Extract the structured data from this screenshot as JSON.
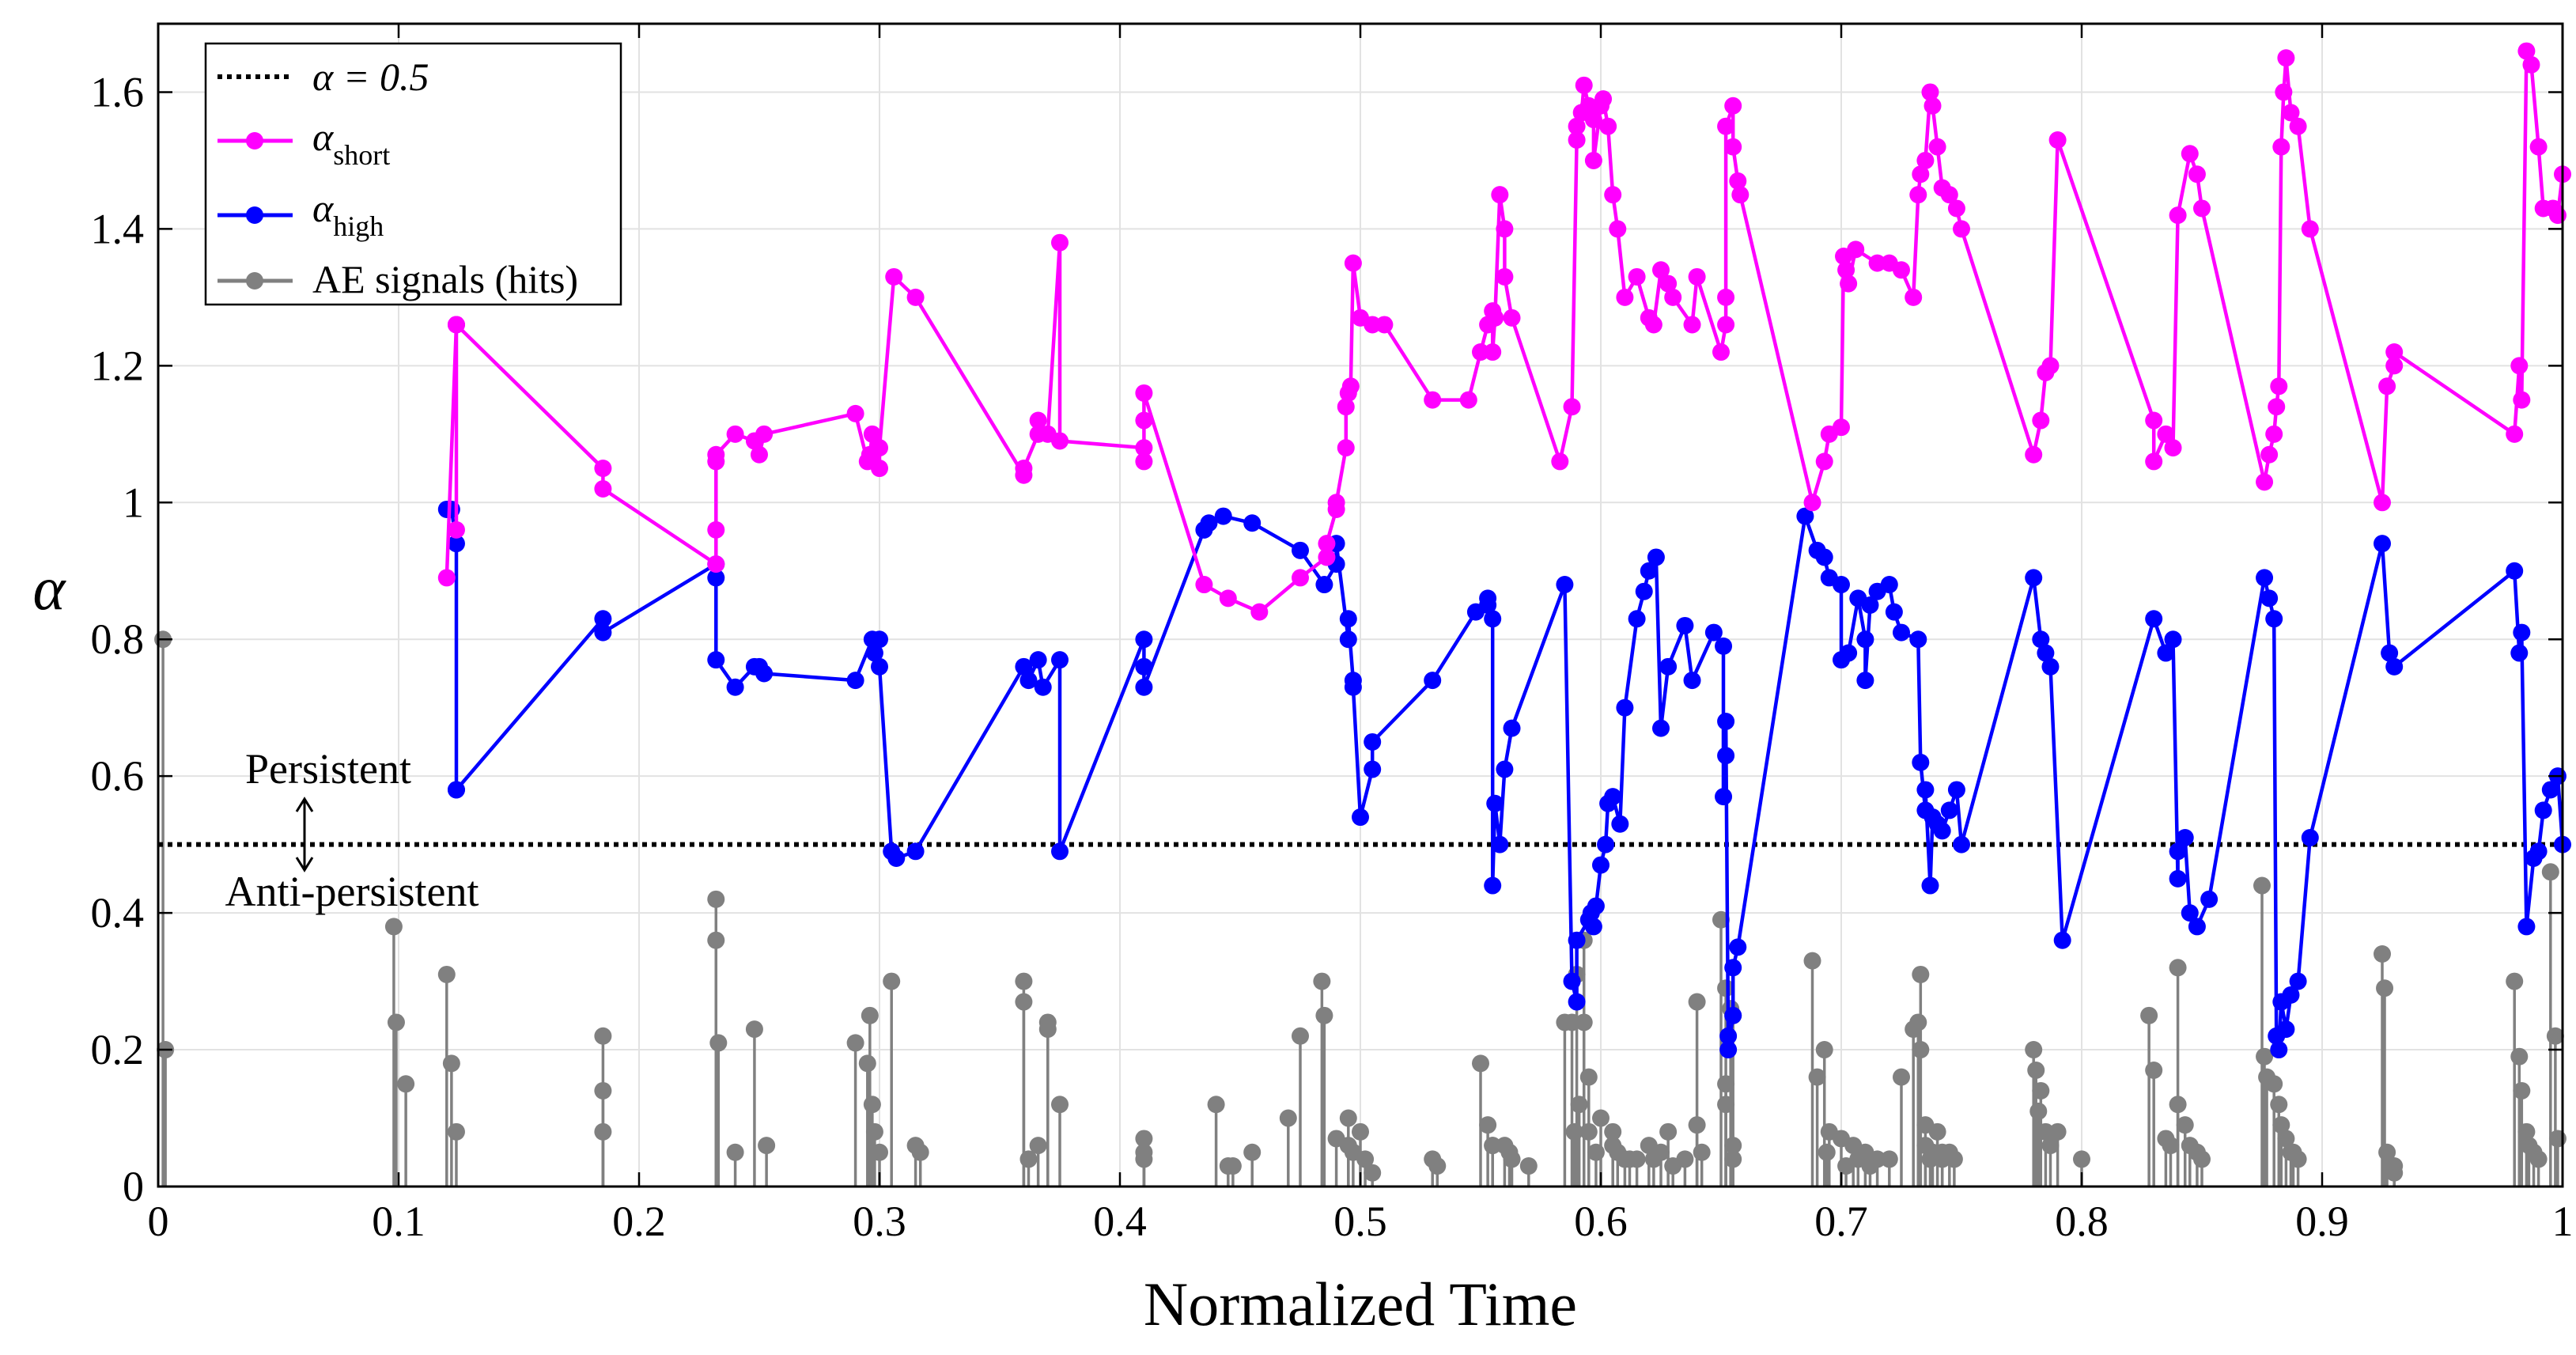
{
  "chart_data": {
    "type": "line",
    "title": "",
    "xlabel": "Normalized Time",
    "ylabel": "α",
    "xlim": [
      0,
      1
    ],
    "ylim": [
      0,
      1.7
    ],
    "grid": true,
    "xticks": [
      0,
      0.1,
      0.2,
      0.3,
      0.4,
      0.5,
      0.6,
      0.7,
      0.8,
      0.9,
      1
    ],
    "xtick_labels": [
      "0",
      "0.1",
      "0.2",
      "0.3",
      "0.4",
      "0.5",
      "0.6",
      "0.7",
      "0.8",
      "0.9",
      "1"
    ],
    "yticks": [
      0,
      0.2,
      0.4,
      0.6,
      0.8,
      1,
      1.2,
      1.4,
      1.6
    ],
    "ytick_labels": [
      "0",
      "0.2",
      "0.4",
      "0.6",
      "0.8",
      "1",
      "1.2",
      "1.4",
      "1.6"
    ],
    "legend": {
      "position": "top-left",
      "entries": [
        {
          "base": "α = 0.5",
          "sub": ""
        },
        {
          "base": "α",
          "sub": "short"
        },
        {
          "base": "α",
          "sub": "high"
        },
        {
          "base": "AE signals (hits)",
          "sub": ""
        }
      ]
    },
    "reference_line": {
      "name": "α = 0.5",
      "y": 0.5,
      "color": "#000000",
      "style": "dotted"
    },
    "annotations": {
      "above": "Persistent",
      "below": "Anti-persistent"
    },
    "colors": {
      "short": "#ff00ff",
      "high": "#0000ff",
      "ae": "#808080"
    },
    "series": [
      {
        "name": "α_short",
        "x": [
          0.12,
          0.124,
          0.124,
          0.124,
          0.124,
          0.185,
          0.185,
          0.232,
          0.232,
          0.232,
          0.232,
          0.24,
          0.248,
          0.25,
          0.252,
          0.29,
          0.295,
          0.296,
          0.297,
          0.3,
          0.3,
          0.306,
          0.315,
          0.36,
          0.36,
          0.366,
          0.366,
          0.37,
          0.375,
          0.375,
          0.41,
          0.41,
          0.41,
          0.41,
          0.435,
          0.445,
          0.458,
          0.475,
          0.486,
          0.486,
          0.49,
          0.49,
          0.494,
          0.494,
          0.495,
          0.496,
          0.497,
          0.5,
          0.505,
          0.51,
          0.53,
          0.545,
          0.55,
          0.553,
          0.555,
          0.555,
          0.556,
          0.558,
          0.56,
          0.56,
          0.563,
          0.583,
          0.588,
          0.59,
          0.59,
          0.592,
          0.593,
          0.595,
          0.597,
          0.597,
          0.6,
          0.601,
          0.603,
          0.605,
          0.607,
          0.61,
          0.615,
          0.62,
          0.622,
          0.625,
          0.628,
          0.63,
          0.638,
          0.64,
          0.65,
          0.652,
          0.652,
          0.652,
          0.655,
          0.655,
          0.657,
          0.658,
          0.688,
          0.693,
          0.695,
          0.7,
          0.701,
          0.702,
          0.703,
          0.706,
          0.715,
          0.72,
          0.725,
          0.73,
          0.732,
          0.733,
          0.735,
          0.737,
          0.738,
          0.74,
          0.742,
          0.745,
          0.748,
          0.75,
          0.78,
          0.783,
          0.785,
          0.787,
          0.79,
          0.83,
          0.83,
          0.835,
          0.838,
          0.84,
          0.845,
          0.848,
          0.85,
          0.876,
          0.878,
          0.88,
          0.881,
          0.882,
          0.883,
          0.884,
          0.885,
          0.887,
          0.89,
          0.895,
          0.925,
          0.927,
          0.93,
          0.93,
          0.98,
          0.982,
          0.983,
          0.985,
          0.987,
          0.99,
          0.992,
          0.996,
          0.998,
          1
        ],
        "y": [
          0.89,
          1.26,
          0.96,
          1.26,
          1.26,
          1.05,
          1.02,
          0.91,
          0.96,
          1.06,
          1.07,
          1.1,
          1.09,
          1.07,
          1.1,
          1.13,
          1.06,
          1.07,
          1.1,
          1.05,
          1.08,
          1.33,
          1.3,
          1.04,
          1.05,
          1.1,
          1.12,
          1.1,
          1.38,
          1.09,
          1.08,
          1.06,
          1.12,
          1.16,
          0.88,
          0.86,
          0.84,
          0.89,
          0.92,
          0.94,
          0.99,
          1.0,
          1.08,
          1.14,
          1.16,
          1.17,
          1.35,
          1.27,
          1.26,
          1.26,
          1.15,
          1.15,
          1.22,
          1.26,
          1.28,
          1.22,
          1.27,
          1.45,
          1.4,
          1.33,
          1.27,
          1.06,
          1.14,
          1.53,
          1.55,
          1.57,
          1.61,
          1.58,
          1.56,
          1.5,
          1.58,
          1.59,
          1.55,
          1.45,
          1.4,
          1.3,
          1.33,
          1.27,
          1.26,
          1.34,
          1.32,
          1.3,
          1.26,
          1.33,
          1.22,
          1.26,
          1.3,
          1.55,
          1.58,
          1.52,
          1.47,
          1.45,
          1.0,
          1.06,
          1.1,
          1.11,
          1.36,
          1.34,
          1.32,
          1.37,
          1.35,
          1.35,
          1.34,
          1.3,
          1.45,
          1.48,
          1.5,
          1.6,
          1.58,
          1.52,
          1.46,
          1.45,
          1.43,
          1.4,
          1.07,
          1.12,
          1.19,
          1.2,
          1.53,
          1.12,
          1.06,
          1.1,
          1.08,
          1.42,
          1.51,
          1.48,
          1.43,
          1.03,
          1.07,
          1.1,
          1.14,
          1.17,
          1.52,
          1.6,
          1.65,
          1.57,
          1.55,
          1.4,
          1.0,
          1.17,
          1.2,
          1.22,
          1.1,
          1.2,
          1.15,
          1.66,
          1.64,
          1.52,
          1.43,
          1.43,
          1.42,
          1.48
        ]
      },
      {
        "name": "α_high",
        "x": [
          0.12,
          0.122,
          0.124,
          0.124,
          0.124,
          0.185,
          0.185,
          0.232,
          0.232,
          0.232,
          0.24,
          0.248,
          0.25,
          0.252,
          0.29,
          0.297,
          0.298,
          0.3,
          0.3,
          0.305,
          0.307,
          0.315,
          0.36,
          0.362,
          0.366,
          0.368,
          0.375,
          0.375,
          0.41,
          0.41,
          0.41,
          0.435,
          0.437,
          0.443,
          0.455,
          0.475,
          0.485,
          0.49,
          0.49,
          0.495,
          0.495,
          0.497,
          0.497,
          0.5,
          0.505,
          0.505,
          0.53,
          0.548,
          0.553,
          0.553,
          0.555,
          0.555,
          0.556,
          0.558,
          0.56,
          0.563,
          0.585,
          0.588,
          0.59,
          0.59,
          0.595,
          0.596,
          0.597,
          0.598,
          0.6,
          0.602,
          0.603,
          0.605,
          0.608,
          0.61,
          0.615,
          0.618,
          0.62,
          0.623,
          0.625,
          0.628,
          0.635,
          0.638,
          0.647,
          0.651,
          0.651,
          0.652,
          0.652,
          0.653,
          0.653,
          0.655,
          0.655,
          0.657,
          0.685,
          0.69,
          0.693,
          0.695,
          0.7,
          0.7,
          0.703,
          0.707,
          0.71,
          0.71,
          0.712,
          0.715,
          0.72,
          0.722,
          0.725,
          0.732,
          0.733,
          0.735,
          0.735,
          0.737,
          0.738,
          0.74,
          0.742,
          0.745,
          0.748,
          0.75,
          0.78,
          0.783,
          0.785,
          0.787,
          0.792,
          0.83,
          0.835,
          0.838,
          0.84,
          0.84,
          0.843,
          0.845,
          0.848,
          0.853,
          0.876,
          0.878,
          0.88,
          0.881,
          0.882,
          0.883,
          0.885,
          0.887,
          0.89,
          0.895,
          0.925,
          0.928,
          0.93,
          0.98,
          0.982,
          0.983,
          0.985,
          0.988,
          0.99,
          0.992,
          0.995,
          0.998,
          1
        ],
        "y": [
          0.99,
          0.99,
          0.94,
          0.58,
          0.58,
          0.83,
          0.81,
          0.91,
          0.89,
          0.77,
          0.73,
          0.76,
          0.76,
          0.75,
          0.74,
          0.8,
          0.78,
          0.8,
          0.76,
          0.49,
          0.48,
          0.49,
          0.76,
          0.74,
          0.77,
          0.73,
          0.77,
          0.49,
          0.8,
          0.76,
          0.73,
          0.96,
          0.97,
          0.98,
          0.97,
          0.93,
          0.88,
          0.91,
          0.94,
          0.8,
          0.83,
          0.74,
          0.73,
          0.54,
          0.61,
          0.65,
          0.74,
          0.84,
          0.85,
          0.86,
          0.83,
          0.44,
          0.56,
          0.5,
          0.61,
          0.67,
          0.88,
          0.3,
          0.27,
          0.36,
          0.39,
          0.4,
          0.38,
          0.41,
          0.47,
          0.5,
          0.56,
          0.57,
          0.53,
          0.7,
          0.83,
          0.87,
          0.9,
          0.92,
          0.67,
          0.76,
          0.82,
          0.74,
          0.81,
          0.79,
          0.57,
          0.63,
          0.68,
          0.22,
          0.2,
          0.25,
          0.32,
          0.35,
          0.98,
          0.93,
          0.92,
          0.89,
          0.88,
          0.77,
          0.78,
          0.86,
          0.8,
          0.74,
          0.85,
          0.87,
          0.88,
          0.84,
          0.81,
          0.8,
          0.62,
          0.55,
          0.58,
          0.44,
          0.54,
          0.53,
          0.52,
          0.55,
          0.58,
          0.5,
          0.89,
          0.8,
          0.78,
          0.76,
          0.36,
          0.83,
          0.78,
          0.8,
          0.45,
          0.49,
          0.51,
          0.4,
          0.38,
          0.42,
          0.89,
          0.86,
          0.83,
          0.22,
          0.2,
          0.27,
          0.23,
          0.28,
          0.3,
          0.51,
          0.94,
          0.78,
          0.76,
          0.9,
          0.78,
          0.81,
          0.38,
          0.48,
          0.49,
          0.55,
          0.58,
          0.6,
          0.5
        ]
      },
      {
        "name": "AE signals (hits)",
        "type": "stem",
        "x": [
          0.002,
          0.003,
          0.098,
          0.099,
          0.103,
          0.12,
          0.122,
          0.124,
          0.185,
          0.185,
          0.185,
          0.232,
          0.232,
          0.233,
          0.24,
          0.248,
          0.253,
          0.29,
          0.295,
          0.296,
          0.297,
          0.298,
          0.3,
          0.305,
          0.315,
          0.317,
          0.36,
          0.36,
          0.362,
          0.366,
          0.37,
          0.37,
          0.375,
          0.41,
          0.41,
          0.41,
          0.44,
          0.445,
          0.447,
          0.455,
          0.47,
          0.475,
          0.484,
          0.485,
          0.49,
          0.495,
          0.495,
          0.497,
          0.5,
          0.502,
          0.505,
          0.53,
          0.532,
          0.55,
          0.553,
          0.555,
          0.555,
          0.56,
          0.562,
          0.563,
          0.57,
          0.585,
          0.588,
          0.589,
          0.59,
          0.591,
          0.593,
          0.593,
          0.595,
          0.595,
          0.598,
          0.6,
          0.605,
          0.605,
          0.607,
          0.61,
          0.612,
          0.615,
          0.62,
          0.622,
          0.625,
          0.628,
          0.63,
          0.635,
          0.64,
          0.64,
          0.642,
          0.65,
          0.652,
          0.652,
          0.652,
          0.654,
          0.655,
          0.655,
          0.655,
          0.688,
          0.69,
          0.693,
          0.694,
          0.695,
          0.7,
          0.702,
          0.705,
          0.707,
          0.71,
          0.712,
          0.715,
          0.72,
          0.725,
          0.73,
          0.732,
          0.733,
          0.733,
          0.735,
          0.735,
          0.737,
          0.738,
          0.74,
          0.742,
          0.742,
          0.745,
          0.747,
          0.78,
          0.781,
          0.782,
          0.783,
          0.785,
          0.787,
          0.79,
          0.8,
          0.828,
          0.83,
          0.835,
          0.837,
          0.84,
          0.84,
          0.843,
          0.845,
          0.848,
          0.85,
          0.875,
          0.876,
          0.877,
          0.88,
          0.882,
          0.883,
          0.885,
          0.887,
          0.888,
          0.89,
          0.925,
          0.926,
          0.927,
          0.93,
          0.93,
          0.98,
          0.982,
          0.983,
          0.985,
          0.986,
          0.988,
          0.99,
          0.995,
          0.997,
          0.998
        ],
        "y": [
          0.8,
          0.2,
          0.38,
          0.24,
          0.15,
          0.31,
          0.18,
          0.08,
          0.22,
          0.14,
          0.08,
          0.42,
          0.36,
          0.21,
          0.05,
          0.23,
          0.06,
          0.21,
          0.18,
          0.25,
          0.12,
          0.08,
          0.05,
          0.3,
          0.06,
          0.05,
          0.3,
          0.27,
          0.04,
          0.06,
          0.24,
          0.23,
          0.12,
          0.07,
          0.05,
          0.04,
          0.12,
          0.03,
          0.03,
          0.05,
          0.1,
          0.22,
          0.3,
          0.25,
          0.07,
          0.1,
          0.06,
          0.05,
          0.08,
          0.04,
          0.02,
          0.04,
          0.03,
          0.18,
          0.09,
          0.06,
          0.06,
          0.06,
          0.05,
          0.04,
          0.03,
          0.24,
          0.24,
          0.08,
          0.31,
          0.12,
          0.24,
          0.36,
          0.08,
          0.16,
          0.05,
          0.1,
          0.08,
          0.06,
          0.05,
          0.04,
          0.04,
          0.04,
          0.06,
          0.04,
          0.05,
          0.08,
          0.03,
          0.04,
          0.27,
          0.09,
          0.05,
          0.39,
          0.15,
          0.12,
          0.29,
          0.26,
          0.25,
          0.06,
          0.04,
          0.33,
          0.16,
          0.2,
          0.05,
          0.08,
          0.07,
          0.03,
          0.06,
          0.04,
          0.05,
          0.03,
          0.04,
          0.04,
          0.16,
          0.23,
          0.24,
          0.31,
          0.2,
          0.06,
          0.09,
          0.04,
          0.05,
          0.08,
          0.04,
          0.05,
          0.05,
          0.04,
          0.2,
          0.17,
          0.11,
          0.14,
          0.08,
          0.06,
          0.08,
          0.04,
          0.25,
          0.17,
          0.07,
          0.06,
          0.32,
          0.12,
          0.09,
          0.06,
          0.05,
          0.04,
          0.44,
          0.19,
          0.16,
          0.15,
          0.12,
          0.09,
          0.07,
          0.05,
          0.05,
          0.04,
          0.34,
          0.29,
          0.05,
          0.03,
          0.02,
          0.3,
          0.19,
          0.14,
          0.08,
          0.06,
          0.05,
          0.04,
          0.46,
          0.22,
          0.07
        ]
      }
    ]
  }
}
